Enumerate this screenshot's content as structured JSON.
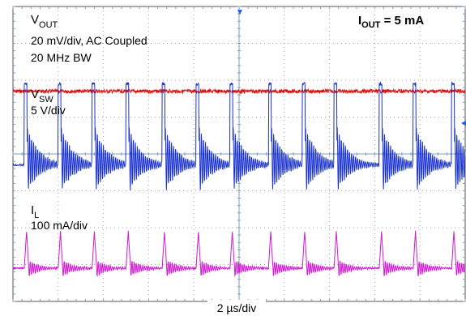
{
  "chart_data": {
    "type": "line",
    "title": "",
    "header_label": {
      "main": "I",
      "sub": "OUT",
      "rest": " = 5 mA"
    },
    "xlabel": "2 µs/div",
    "x_divisions": 10,
    "y_divisions": 8,
    "xlim_us": [
      0,
      20
    ],
    "grid": true,
    "colors": {
      "vout": "#e01010",
      "vsw": "#1a32d0",
      "il": "#d21ad2",
      "grid": "#9aa7ad",
      "axis": "#7fa0b8",
      "trigger": "#2a5fd8"
    },
    "channels": [
      {
        "key": "vout",
        "label_main": "V",
        "label_sub": "OUT",
        "scale": "20 mV/div, AC Coupled",
        "extra": "20 MHz BW",
        "waveform": "ripple",
        "center_div": 2.3,
        "noise_div": 0.05
      },
      {
        "key": "vsw",
        "label_main": "V",
        "label_sub": "SW",
        "scale": "5 V/div",
        "waveform": "switch_node",
        "baseline_div": 4.3,
        "high_div": 2.1,
        "ringing_amplitude_div": 0.9,
        "pulse_times_us": [
          0.5,
          2.0,
          3.5,
          5.0,
          6.6,
          8.1,
          9.6,
          11.3,
          12.8,
          14.2,
          16.2,
          17.7,
          19.4
        ]
      },
      {
        "key": "il",
        "label_main": "I",
        "label_sub": "L",
        "scale": "100 mA/div",
        "waveform": "inductor_current",
        "baseline_div": 7.1,
        "peak_div": 6.1,
        "pulse_times_us": [
          0.5,
          2.0,
          3.5,
          5.0,
          6.6,
          8.1,
          9.6,
          11.3,
          12.8,
          14.2,
          16.2,
          17.7,
          19.4
        ]
      }
    ]
  }
}
